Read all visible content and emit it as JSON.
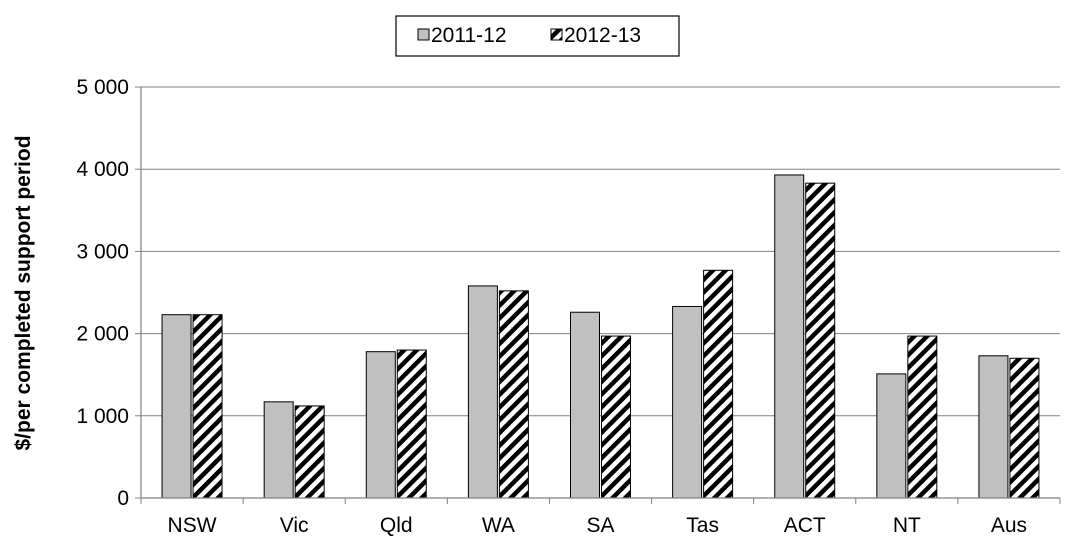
{
  "chart_data": {
    "type": "bar",
    "title": "",
    "xlabel": "",
    "ylabel": "$/per completed support  period",
    "ylim": [
      0,
      5000
    ],
    "yticks": [
      0,
      1000,
      2000,
      3000,
      4000,
      5000
    ],
    "ytick_labels": [
      "0",
      "1 000",
      "2 000",
      "3 000",
      "4 000",
      "5 000"
    ],
    "grid": true,
    "legend_position": "top-center",
    "categories": [
      "NSW",
      "Vic",
      "Qld",
      "WA",
      "SA",
      "Tas",
      "ACT",
      "NT",
      "Aus"
    ],
    "series": [
      {
        "name": "2011-12",
        "fill": "solid-grey",
        "color": "#c0c0c0",
        "values": [
          2230,
          1170,
          1780,
          2580,
          2260,
          2330,
          3930,
          1510,
          1730
        ]
      },
      {
        "name": "2012-13",
        "fill": "diagonal-stripes",
        "color": "#000000",
        "values": [
          2230,
          1120,
          1800,
          2520,
          1970,
          2770,
          3830,
          1970,
          1700
        ]
      }
    ]
  }
}
